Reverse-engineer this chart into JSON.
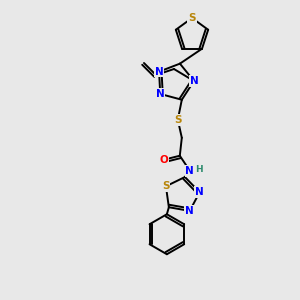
{
  "background_color": "#e8e8e8",
  "bond_color": "#000000",
  "atom_colors": {
    "S": "#b8860b",
    "N": "#0000ff",
    "O": "#ff0000",
    "C": "#000000",
    "H": "#2e8b6e"
  },
  "figsize": [
    3.0,
    3.0
  ],
  "dpi": 100,
  "lw": 1.4,
  "fs": 7.5
}
